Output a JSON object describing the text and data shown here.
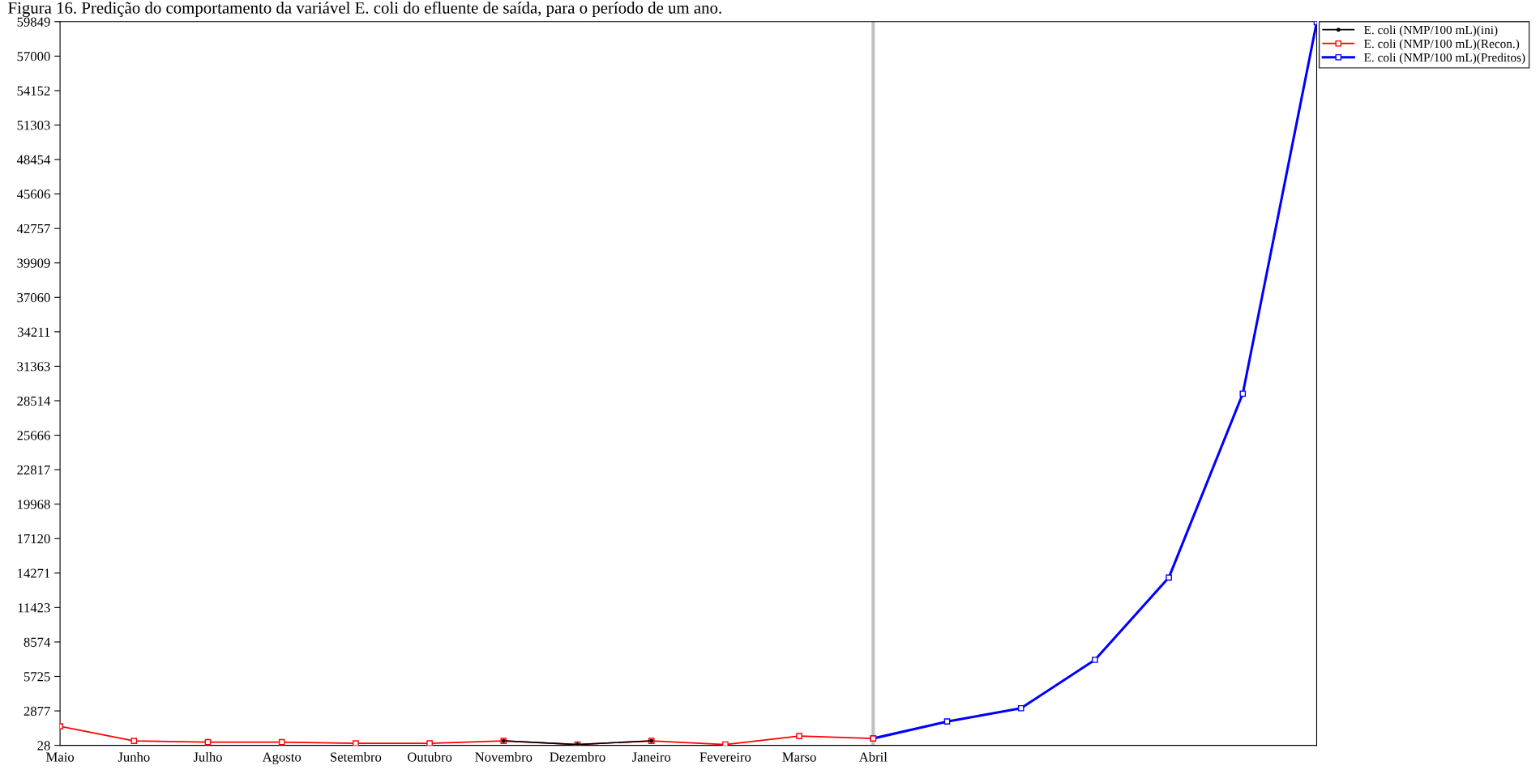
{
  "chart_data": {
    "type": "line",
    "title": "Figura 16. Predição do comportamento da variável E. coli do efluente de saída, para o período de um ano.",
    "categories": [
      "Maio",
      "Junho",
      "Julho",
      "Agosto",
      "Setembro",
      "Outubro",
      "Novembro",
      "Dezembro",
      "Janeiro",
      "Fevereiro",
      "Marso",
      "Abril",
      null,
      null,
      null,
      null,
      null,
      null
    ],
    "series": [
      {
        "name": "E. coli (NMP/100 mL)(ini)",
        "color": "#000000",
        "marker": "circle",
        "values": [
          null,
          null,
          null,
          null,
          null,
          null,
          400,
          100,
          400,
          null,
          null,
          null,
          null,
          null,
          null,
          null,
          null,
          null
        ]
      },
      {
        "name": "E. coli (NMP/100 mL)(Recon.)",
        "color": "#ff0000",
        "marker": "square",
        "values": [
          1600,
          400,
          300,
          300,
          200,
          200,
          400,
          100,
          400,
          100,
          800,
          600,
          null,
          null,
          null,
          null,
          null,
          null
        ]
      },
      {
        "name": "E. coli (NMP/100 mL)(Preditos)",
        "color": "#0000ff",
        "marker": "square",
        "values": [
          null,
          null,
          null,
          null,
          null,
          null,
          null,
          null,
          null,
          null,
          null,
          600,
          2000,
          3100,
          7100,
          13900,
          29100,
          59800
        ]
      }
    ],
    "ylim": [
      28,
      59849
    ],
    "yticks": [
      28,
      2877,
      5725,
      8574,
      11423,
      14271,
      17120,
      19968,
      22817,
      25666,
      28514,
      31363,
      34211,
      37060,
      39909,
      42757,
      45606,
      48454,
      51303,
      54152,
      57000,
      59849
    ],
    "ref_lines": [
      {
        "axis": "x",
        "value": "Abril",
        "color": "#c0c0c0"
      }
    ],
    "grid": false,
    "legend": "top right",
    "line_style": "solid"
  }
}
